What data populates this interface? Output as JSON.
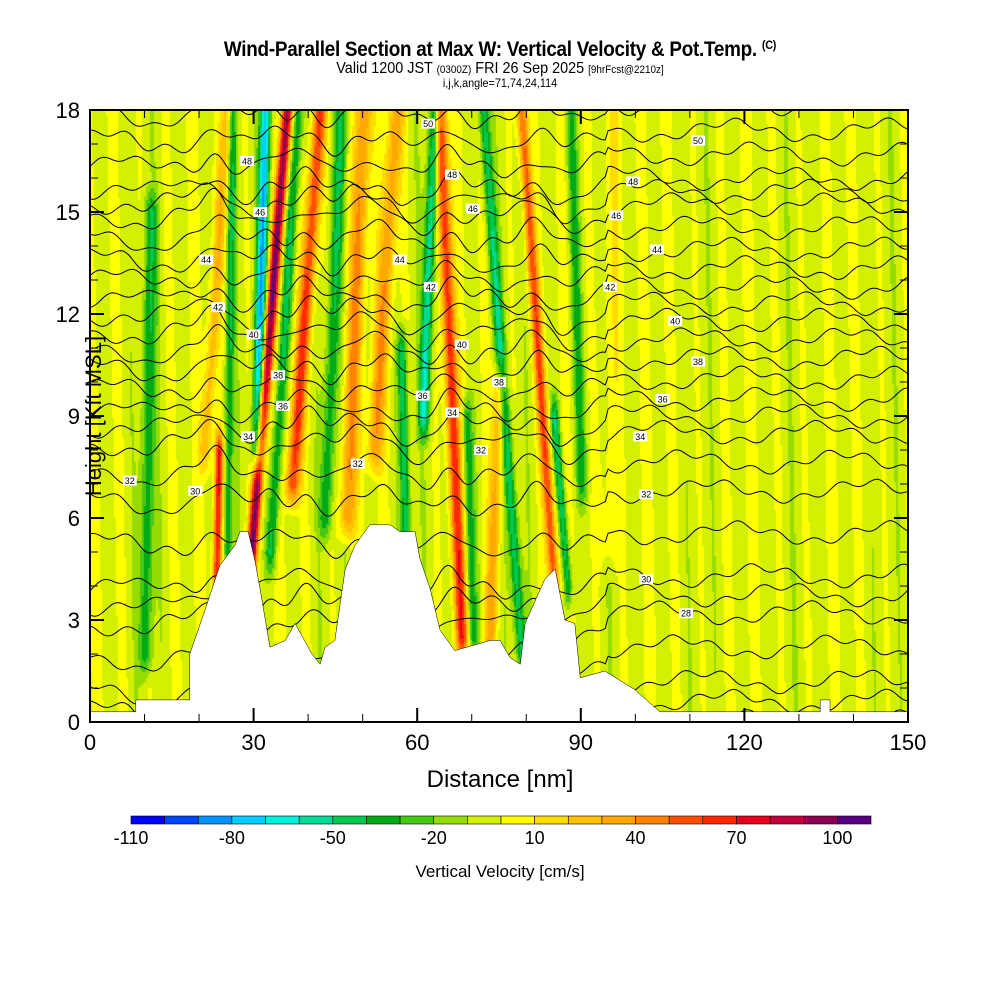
{
  "title": {
    "main": "Wind-Parallel Section at Max W: Vertical Velocity & Pot.Temp.",
    "copyright": "(C)",
    "valid_prefix": "Valid 1200 JST",
    "valid_utc": "(0300Z)",
    "valid_date": "FRI 26 Sep 2025",
    "forecast": "[9hrFcst@2210z]",
    "indices": "i,j,k,angle=71,74,24,114"
  },
  "chart_data": {
    "type": "heatmap",
    "title": "Wind-Parallel Section at Max W: Vertical Velocity & Pot.Temp.",
    "xlabel": "Distance [nm]",
    "ylabel": "Height [Kft MSL]",
    "xlim": [
      0,
      150
    ],
    "ylim": [
      0,
      18
    ],
    "xticks": [
      "0",
      "30",
      "60",
      "90",
      "120",
      "150"
    ],
    "yticks": [
      "0",
      "3",
      "6",
      "9",
      "12",
      "15",
      "18"
    ],
    "colorbar": {
      "label": "Vertical Velocity [cm/s]",
      "min": -110,
      "max": 110,
      "step": 10,
      "tick_labels": [
        "-110",
        "-80",
        "-50",
        "-20",
        "10",
        "40",
        "70",
        "100"
      ],
      "tick_values": [
        -110,
        -80,
        -50,
        -20,
        10,
        40,
        70,
        100
      ],
      "colors": [
        "#0000ff",
        "#0046ff",
        "#0094ff",
        "#00ccff",
        "#00f0dc",
        "#00dc96",
        "#00c850",
        "#00aa14",
        "#46c814",
        "#96dc00",
        "#d2f000",
        "#ffff00",
        "#ffdc00",
        "#ffc000",
        "#ffa800",
        "#ff8200",
        "#ff5000",
        "#ff2800",
        "#e6001e",
        "#c0003c",
        "#8c0050",
        "#5a0082"
      ]
    },
    "w_bands": [
      {
        "x0": 10,
        "x1": 11,
        "z0": 2,
        "z1": 15,
        "w": -35,
        "width": 1.2
      },
      {
        "x0": 23,
        "x1": 23.5,
        "z0": 3.5,
        "z1": 8,
        "w": 75,
        "width": 0.8
      },
      {
        "x0": 21,
        "x1": 25,
        "z0": 8,
        "z1": 18,
        "w": 30,
        "width": 1.2
      },
      {
        "x0": 25,
        "x1": 26,
        "z0": 5,
        "z1": 18,
        "w": -35,
        "width": 0.8
      },
      {
        "x0": 30.5,
        "x1": 32,
        "z0": 8,
        "z1": 18,
        "w": -75,
        "width": 1.0
      },
      {
        "x0": 29.5,
        "x1": 36,
        "z0": 5,
        "z1": 18,
        "w": 100,
        "width": 1.0
      },
      {
        "x0": 33,
        "x1": 38,
        "z0": 5,
        "z1": 18,
        "w": -40,
        "width": 1.0
      },
      {
        "x0": 37,
        "x1": 42,
        "z0": 7,
        "z1": 18,
        "w": 65,
        "width": 1.3
      },
      {
        "x0": 43,
        "x1": 46,
        "z0": 6,
        "z1": 18,
        "w": -35,
        "width": 1.2
      },
      {
        "x0": 47,
        "x1": 50,
        "z0": 6,
        "z1": 18,
        "w": 45,
        "width": 1.5
      },
      {
        "x0": 58,
        "x1": 57,
        "z0": 4,
        "z1": 11,
        "w": -45,
        "width": 0.9
      },
      {
        "x0": 52,
        "x1": 56,
        "z0": 8,
        "z1": 18,
        "w": 40,
        "width": 1.5
      },
      {
        "x0": 68,
        "x1": 64,
        "z0": 2.5,
        "z1": 18,
        "w": 70,
        "width": 1.2
      },
      {
        "x0": 61,
        "x1": 63,
        "z0": 9,
        "z1": 18,
        "w": -55,
        "width": 1.0
      },
      {
        "x0": 70,
        "x1": 69,
        "z0": 2.5,
        "z1": 9,
        "w": -35,
        "width": 1.0
      },
      {
        "x0": 73,
        "x1": 75,
        "z0": 2,
        "z1": 10,
        "w": 35,
        "width": 1.2
      },
      {
        "x0": 79,
        "x1": 72,
        "z0": 2,
        "z1": 18,
        "w": -45,
        "width": 1.0
      },
      {
        "x0": 85,
        "x1": 79,
        "z0": 4,
        "z1": 18,
        "w": 60,
        "width": 1.0
      },
      {
        "x0": 87.5,
        "x1": 85,
        "z0": 4,
        "z1": 9,
        "w": -45,
        "width": 0.8
      },
      {
        "x0": 90,
        "x1": 88,
        "z0": 7,
        "z1": 18,
        "w": -30,
        "width": 1.0
      },
      {
        "x0": 95,
        "x1": 96,
        "z0": 5,
        "z1": 18,
        "w": 12,
        "width": 2
      }
    ],
    "theta_profile": [
      [
        24,
        0
      ],
      [
        26,
        1.2
      ],
      [
        28,
        3.2
      ],
      [
        30,
        4.3
      ],
      [
        32,
        6.8
      ],
      [
        34,
        8.5
      ],
      [
        36,
        9.5
      ],
      [
        38,
        10.7
      ],
      [
        40,
        11.8
      ],
      [
        42,
        12.8
      ],
      [
        44,
        13.9
      ],
      [
        46,
        15.2
      ],
      [
        48,
        16.0
      ],
      [
        50,
        17.4
      ],
      [
        51,
        18.2
      ]
    ],
    "contour_levels": [
      24,
      25,
      26,
      27,
      28,
      29,
      30,
      31,
      32,
      33,
      34,
      35,
      36,
      37,
      38,
      39,
      40,
      41,
      42,
      43,
      44,
      45,
      46,
      47,
      48,
      49,
      50,
      51
    ],
    "contour_labels": [
      {
        "text": "32",
        "x": 7.3,
        "z": 7.1
      },
      {
        "text": "30",
        "x": 19.3,
        "z": 6.8
      },
      {
        "text": "34",
        "x": 29,
        "z": 8.4
      },
      {
        "text": "36",
        "x": 35.4,
        "z": 9.3
      },
      {
        "text": "38",
        "x": 34.5,
        "z": 10.2
      },
      {
        "text": "40",
        "x": 30,
        "z": 11.4
      },
      {
        "text": "42",
        "x": 23.5,
        "z": 12.2
      },
      {
        "text": "44",
        "x": 21.3,
        "z": 13.6
      },
      {
        "text": "46",
        "x": 31.2,
        "z": 15
      },
      {
        "text": "48",
        "x": 28.8,
        "z": 16.5
      },
      {
        "text": "50",
        "x": 62,
        "z": 17.6
      },
      {
        "text": "48",
        "x": 66.4,
        "z": 16.1
      },
      {
        "text": "46",
        "x": 70.2,
        "z": 15.1
      },
      {
        "text": "44",
        "x": 56.8,
        "z": 13.6
      },
      {
        "text": "42",
        "x": 62.5,
        "z": 12.8
      },
      {
        "text": "40",
        "x": 68.2,
        "z": 11.1
      },
      {
        "text": "38",
        "x": 75,
        "z": 10
      },
      {
        "text": "36",
        "x": 61,
        "z": 9.6
      },
      {
        "text": "34",
        "x": 66.4,
        "z": 9.1
      },
      {
        "text": "32",
        "x": 71.7,
        "z": 8.0
      },
      {
        "text": "32",
        "x": 49.1,
        "z": 7.6
      },
      {
        "text": "50",
        "x": 111.5,
        "z": 17.1
      },
      {
        "text": "48",
        "x": 99.6,
        "z": 15.9
      },
      {
        "text": "46",
        "x": 96.5,
        "z": 14.9
      },
      {
        "text": "44",
        "x": 104,
        "z": 13.9
      },
      {
        "text": "42",
        "x": 95.4,
        "z": 12.8
      },
      {
        "text": "40",
        "x": 107.3,
        "z": 11.8
      },
      {
        "text": "38",
        "x": 111.5,
        "z": 10.6
      },
      {
        "text": "36",
        "x": 105,
        "z": 9.5
      },
      {
        "text": "34",
        "x": 100.9,
        "z": 8.4
      },
      {
        "text": "32",
        "x": 102,
        "z": 6.7
      },
      {
        "text": "30",
        "x": 102,
        "z": 4.2
      },
      {
        "text": "28",
        "x": 109.3,
        "z": 3.2
      }
    ],
    "terrain": [
      [
        0,
        0.3
      ],
      [
        8.4,
        0.3
      ],
      [
        8.4,
        0.65
      ],
      [
        18.3,
        0.65
      ],
      [
        18.3,
        2.0
      ],
      [
        21.1,
        3.3
      ],
      [
        23.8,
        4.6
      ],
      [
        26.6,
        5.2
      ],
      [
        27.5,
        5.6
      ],
      [
        29,
        5.6
      ],
      [
        30.3,
        4.7
      ],
      [
        31.2,
        3.9
      ],
      [
        33,
        2.2
      ],
      [
        35.8,
        2.4
      ],
      [
        37.6,
        2.9
      ],
      [
        40.7,
        2.0
      ],
      [
        42.2,
        1.7
      ],
      [
        43.1,
        2.2
      ],
      [
        44.9,
        2.4
      ],
      [
        46.8,
        4.5
      ],
      [
        48.6,
        5.2
      ],
      [
        51.3,
        5.8
      ],
      [
        55,
        5.8
      ],
      [
        56.8,
        5.6
      ],
      [
        59.6,
        5.6
      ],
      [
        60.5,
        4.8
      ],
      [
        62.4,
        3.9
      ],
      [
        64.2,
        2.7
      ],
      [
        66.9,
        2.1
      ],
      [
        73.4,
        2.4
      ],
      [
        75.2,
        2.4
      ],
      [
        77,
        1.9
      ],
      [
        78.9,
        1.7
      ],
      [
        79.8,
        2.9
      ],
      [
        83.4,
        4.2
      ],
      [
        85.3,
        4.5
      ],
      [
        87.1,
        3.0
      ],
      [
        88.9,
        2.9
      ],
      [
        89.9,
        1.3
      ],
      [
        94.4,
        1.5
      ],
      [
        99.9,
        0.95
      ],
      [
        104.5,
        0.3
      ],
      [
        133.9,
        0.3
      ],
      [
        133.9,
        0.65
      ],
      [
        135.7,
        0.65
      ],
      [
        135.7,
        0.3
      ],
      [
        150,
        0.3
      ]
    ]
  }
}
